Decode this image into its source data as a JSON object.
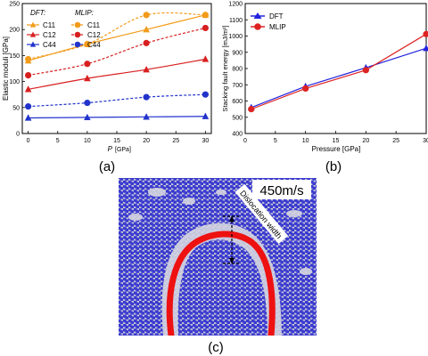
{
  "panel_labels": {
    "a": "(a)",
    "b": "(b)",
    "c": "(c)"
  },
  "colors": {
    "c11": "#f29b1a",
    "c12": "#d81f1f",
    "c44": "#2233cc",
    "dft": "#2222dd",
    "mlip": "#dd2222",
    "atom": "#3a3ad0",
    "atom_gap": "#c9c9d6",
    "core": "#ee1111"
  },
  "chart_data": [
    {
      "type": "line",
      "panel": "a",
      "xlabel": "P",
      "xlabel_unit": "[GPa]",
      "ylabel": "Elastic moduli [GPa]",
      "xlim": [
        -1,
        31
      ],
      "ylim": [
        0,
        250
      ],
      "xticks": [
        0,
        5,
        10,
        15,
        20,
        25,
        30
      ],
      "yticks": [
        0,
        50,
        100,
        150,
        200,
        250
      ],
      "legend_headers": [
        "DFT:",
        "MLIP:"
      ],
      "series": [
        {
          "name": "C11",
          "method": "DFT",
          "color_key": "c11",
          "marker": "triangle",
          "dashed": false,
          "x": [
            0,
            10,
            20,
            30
          ],
          "y": [
            140,
            172,
            200,
            228
          ]
        },
        {
          "name": "C12",
          "method": "DFT",
          "color_key": "c12",
          "marker": "triangle",
          "dashed": false,
          "x": [
            0,
            10,
            20,
            30
          ],
          "y": [
            85,
            106,
            123,
            143
          ]
        },
        {
          "name": "C44",
          "method": "DFT",
          "color_key": "c44",
          "marker": "triangle",
          "dashed": false,
          "x": [
            0,
            10,
            20,
            30
          ],
          "y": [
            30,
            31,
            32,
            33
          ]
        },
        {
          "name": "C11",
          "method": "MLIP",
          "color_key": "c11",
          "marker": "circle",
          "dashed": true,
          "x": [
            0,
            10,
            20,
            30
          ],
          "y": [
            143,
            172,
            228,
            228
          ]
        },
        {
          "name": "C12",
          "method": "MLIP",
          "color_key": "c12",
          "marker": "circle",
          "dashed": true,
          "x": [
            0,
            10,
            20,
            30
          ],
          "y": [
            112,
            134,
            174,
            203
          ]
        },
        {
          "name": "C44",
          "method": "MLIP",
          "color_key": "c44",
          "marker": "circle",
          "dashed": true,
          "x": [
            0,
            10,
            20,
            30
          ],
          "y": [
            52,
            59,
            70,
            75
          ]
        }
      ]
    },
    {
      "type": "line",
      "panel": "b",
      "xlabel": "Pressure [GPa]",
      "ylabel": "Stacking fault energy [mJ/m²]",
      "xlim": [
        0,
        30
      ],
      "ylim": [
        400,
        1200
      ],
      "xticks": [
        0,
        5,
        10,
        15,
        20,
        25,
        30
      ],
      "yticks": [
        400,
        500,
        600,
        700,
        800,
        900,
        1000,
        1100,
        1200
      ],
      "series": [
        {
          "name": "DFT",
          "color_key": "dft",
          "marker": "triangle",
          "x": [
            1,
            10,
            20,
            30
          ],
          "y": [
            560,
            690,
            805,
            925
          ]
        },
        {
          "name": "MLIP",
          "color_key": "mlip",
          "marker": "circle",
          "x": [
            1,
            10,
            20,
            30
          ],
          "y": [
            550,
            677,
            790,
            1012
          ]
        }
      ]
    }
  ],
  "simulation": {
    "velocity_label": "450m/s",
    "width_label": "Dislocation width"
  }
}
